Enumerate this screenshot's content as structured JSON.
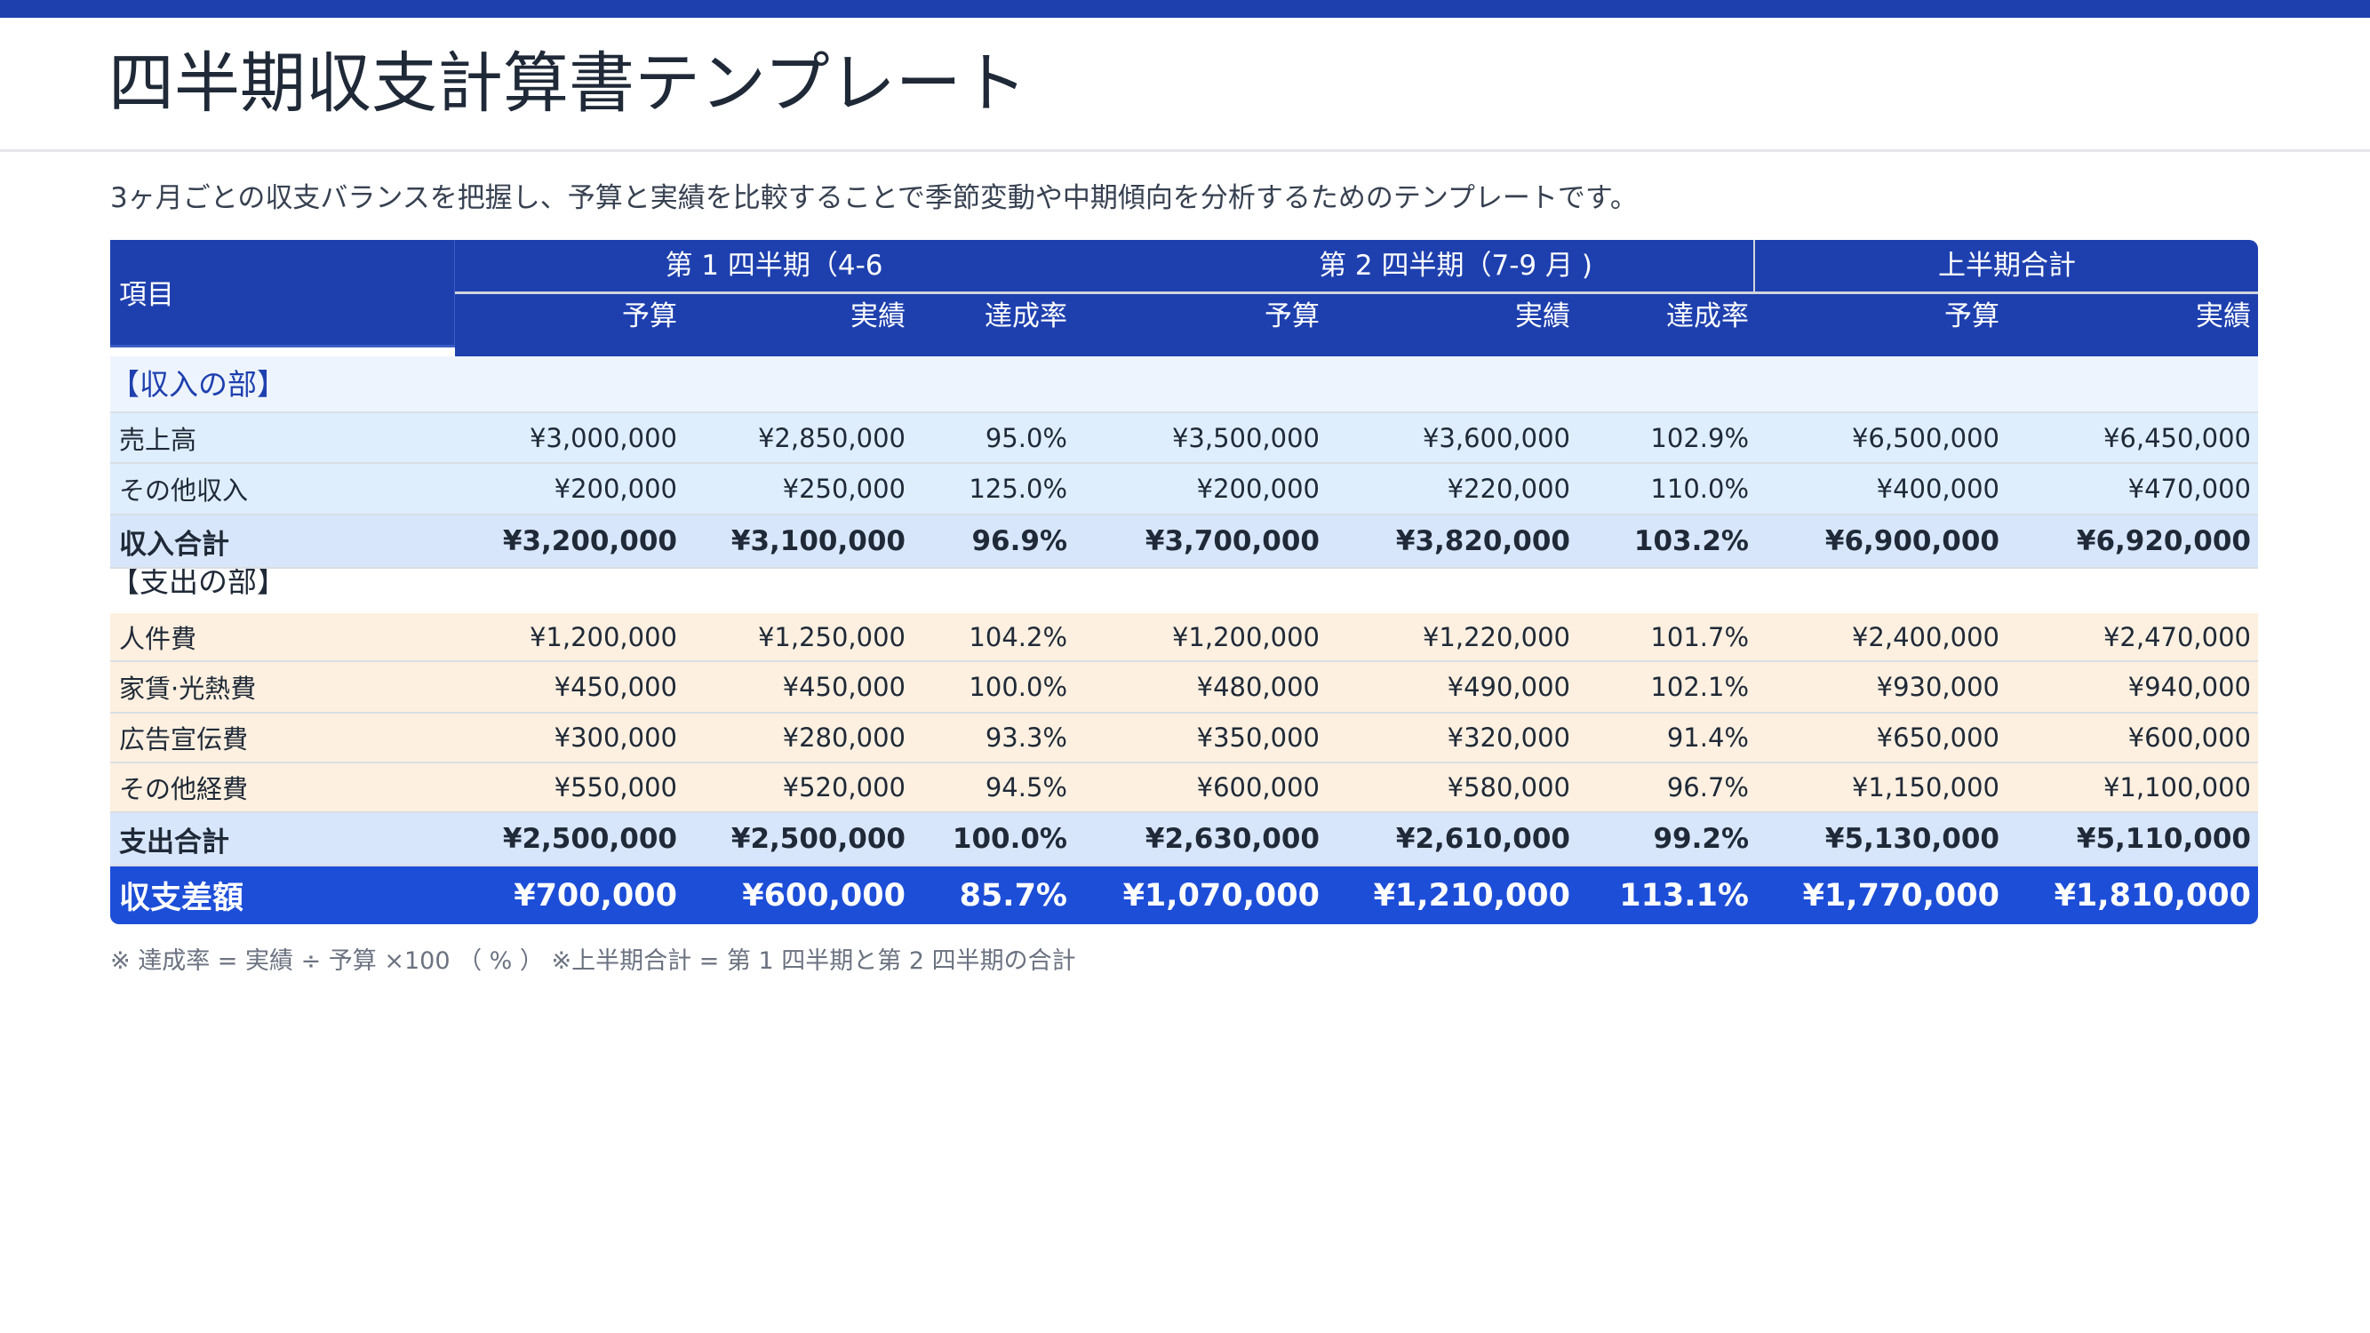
{
  "title": "四半期収支計算書テンプレート",
  "subtitle": "3ヶ月ごとの収支バランスを把握し、予算と実績を比較することで季節変動や中期傾向を分析するためのテンプレートです。",
  "colors": {
    "header": "#1e40af",
    "income_row": "#dfeefd",
    "expense_row": "#fdf0e0",
    "total_row": "#d8e6fb",
    "diff_row": "#1d4ed8"
  },
  "table": {
    "item_header": "項目",
    "groups": [
      "第 1 四半期（4-6",
      "第 2 四半期（7-9 月 )",
      "上半期合計"
    ],
    "subheaders": [
      "予算",
      "実績",
      "達成率",
      "予算",
      "実績",
      "達成率",
      "予算",
      "実績"
    ],
    "income_section": "【収入の部】",
    "expense_section": "【支出の部】",
    "rows": [
      {
        "kind": "inc",
        "cells": [
          "売上高",
          "¥3,000,000",
          "¥2,850,000",
          "95.0%",
          "¥3,500,000",
          "¥3,600,000",
          "102.9%",
          "¥6,500,000",
          "¥6,450,000"
        ]
      },
      {
        "kind": "inc",
        "cells": [
          "その他収入",
          "¥200,000",
          "¥250,000",
          "125.0%",
          "¥200,000",
          "¥220,000",
          "110.0%",
          "¥400,000",
          "¥470,000"
        ]
      },
      {
        "kind": "inc-total",
        "cells": [
          "収入合計",
          "¥3,200,000",
          "¥3,100,000",
          "96.9%",
          "¥3,700,000",
          "¥3,820,000",
          "103.2%",
          "¥6,900,000",
          "¥6,920,000"
        ]
      },
      {
        "kind": "exp",
        "cells": [
          "人件費",
          "¥1,200,000",
          "¥1,250,000",
          "104.2%",
          "¥1,200,000",
          "¥1,220,000",
          "101.7%",
          "¥2,400,000",
          "¥2,470,000"
        ]
      },
      {
        "kind": "exp",
        "cells": [
          "家賃·光熱費",
          "¥450,000",
          "¥450,000",
          "100.0%",
          "¥480,000",
          "¥490,000",
          "102.1%",
          "¥930,000",
          "¥940,000"
        ]
      },
      {
        "kind": "exp",
        "cells": [
          "広告宣伝費",
          "¥300,000",
          "¥280,000",
          "93.3%",
          "¥350,000",
          "¥320,000",
          "91.4%",
          "¥650,000",
          "¥600,000"
        ]
      },
      {
        "kind": "exp",
        "cells": [
          "その他経費",
          "¥550,000",
          "¥520,000",
          "94.5%",
          "¥600,000",
          "¥580,000",
          "96.7%",
          "¥1,150,000",
          "¥1,100,000"
        ]
      },
      {
        "kind": "exp-total",
        "cells": [
          "支出合計",
          "¥2,500,000",
          "¥2,500,000",
          "100.0%",
          "¥2,630,000",
          "¥2,610,000",
          "99.2%",
          "¥5,130,000",
          "¥5,110,000"
        ]
      },
      {
        "kind": "diff",
        "cells": [
          "収支差額",
          "¥700,000",
          "¥600,000",
          "85.7%",
          "¥1,070,000",
          "¥1,210,000",
          "113.1%",
          "¥1,770,000",
          "¥1,810,000"
        ]
      }
    ]
  },
  "footnote": "※ 達成率 = 実績 ÷ 予算 ×100 （ % ）  ※上半期合計 = 第 1 四半期と第 2 四半期の合計"
}
